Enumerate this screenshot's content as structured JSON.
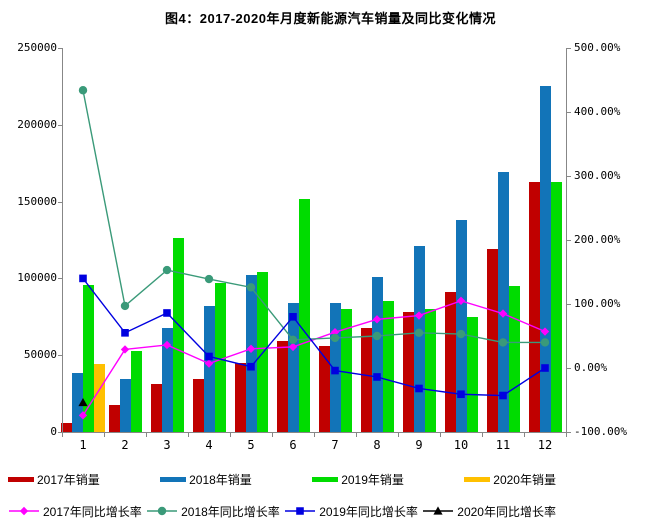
{
  "chart_data": {
    "type": "bar+line",
    "title": "图4：2017-2020年月度新能源汽车销量及同比变化情况",
    "categories": [
      "1",
      "2",
      "3",
      "4",
      "5",
      "6",
      "7",
      "8",
      "9",
      "10",
      "11",
      "12"
    ],
    "left_axis": {
      "min": 0,
      "max": 250000,
      "ticks": [
        {
          "label": "250000",
          "value": 250000
        },
        {
          "label": "200000",
          "value": 200000
        },
        {
          "label": "150000",
          "value": 150000
        },
        {
          "label": "100000",
          "value": 100000
        },
        {
          "label": "50000",
          "value": 50000
        },
        {
          "label": "0",
          "value": 0
        }
      ]
    },
    "right_axis": {
      "min": -100,
      "max": 500,
      "ticks": [
        {
          "label": "500.00%",
          "value": 500
        },
        {
          "label": "400.00%",
          "value": 400
        },
        {
          "label": "300.00%",
          "value": 300
        },
        {
          "label": "200.00%",
          "value": 200
        },
        {
          "label": "100.00%",
          "value": 100
        },
        {
          "label": "0.00%",
          "value": 0
        },
        {
          "label": "-100.00%",
          "value": -100
        }
      ]
    },
    "grid": "off",
    "legend_position": "bottom",
    "bar_series": [
      {
        "key": "sales-2017",
        "name": "2017年销量",
        "color": "#c00000",
        "values": [
          5700,
          17600,
          31100,
          34400,
          45100,
          59000,
          56000,
          68000,
          78000,
          91000,
          119000,
          163000
        ]
      },
      {
        "key": "sales-2018",
        "name": "2018年销量",
        "color": "#1274b8",
        "values": [
          38500,
          34400,
          67800,
          81900,
          102000,
          84000,
          84000,
          101000,
          121000,
          138000,
          169000,
          225000
        ]
      },
      {
        "key": "sales-2019",
        "name": "2019年销量",
        "color": "#00dc00",
        "values": [
          95700,
          52900,
          126000,
          97000,
          104400,
          152000,
          80000,
          85000,
          80000,
          75000,
          95000,
          163000
        ]
      },
      {
        "key": "sales-2020",
        "name": "2020年销量",
        "color": "#ffc000",
        "values": [
          44000,
          null,
          null,
          null,
          null,
          null,
          null,
          null,
          null,
          null,
          null,
          null
        ]
      }
    ],
    "line_series": [
      {
        "key": "growth-2017",
        "name": "2017年同比增长率",
        "color": "#ff00ff",
        "marker": "diamond",
        "values": [
          -74,
          29,
          36,
          7,
          30,
          33,
          56,
          76,
          82,
          105,
          85,
          57
        ]
      },
      {
        "key": "growth-2018",
        "name": "2018年同比增长率",
        "color": "#3a9a79",
        "marker": "circle",
        "values": [
          434,
          97,
          153,
          139,
          126,
          44,
          47,
          50,
          55,
          53,
          40,
          40
        ]
      },
      {
        "key": "growth-2019",
        "name": "2019年同比增长率",
        "color": "#0000e0",
        "marker": "square",
        "values": [
          140,
          55,
          86,
          18,
          2,
          80,
          -4,
          -14,
          -32,
          -41,
          -43,
          0
        ]
      },
      {
        "key": "growth-2020",
        "name": "2020年同比增长率",
        "color": "#000000",
        "marker": "triangle",
        "values": [
          -54,
          null,
          null,
          null,
          null,
          null,
          null,
          null,
          null,
          null,
          null,
          null
        ]
      }
    ],
    "axis_color": "#878787"
  }
}
